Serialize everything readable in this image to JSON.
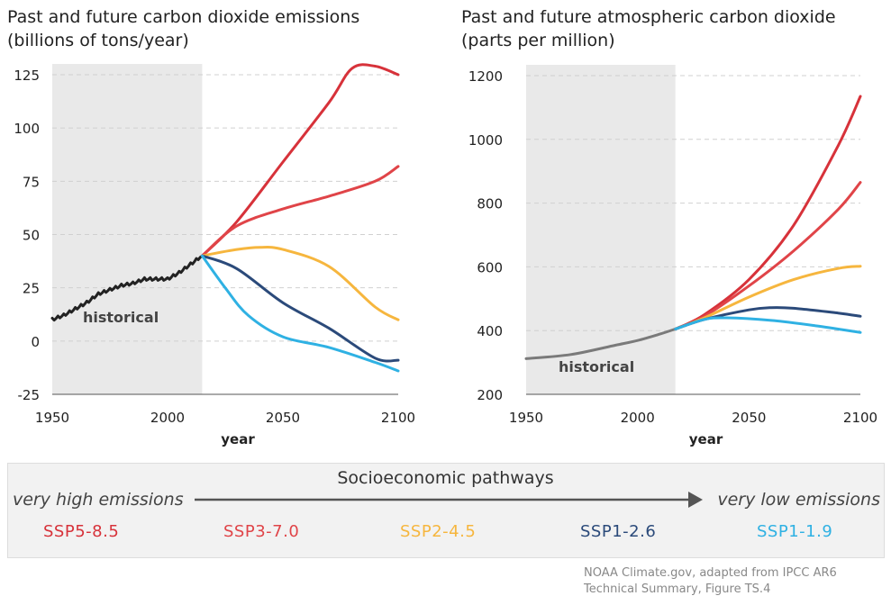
{
  "left_title_line1": "Past and future carbon dioxide emissions",
  "left_title_line2": "(billions of tons/year)",
  "right_title_line1": "Past and future atmospheric carbon dioxide",
  "right_title_line2": "(parts per million)",
  "legend": {
    "title": "Socioeconomic pathways",
    "left_label": "very high emissions",
    "right_label": "very low emissions",
    "scenarios": [
      {
        "label": "SSP5-8.5",
        "color": "#d7323a"
      },
      {
        "label": "SSP3-7.0",
        "color": "#e04448"
      },
      {
        "label": "SSP2-4.5",
        "color": "#f6b63e"
      },
      {
        "label": "SSP1-2.6",
        "color": "#2b4a7a"
      },
      {
        "label": "SSP1-1.9",
        "color": "#2fb1e3"
      }
    ]
  },
  "source_line1": "NOAA Climate.gov, adapted from IPCC AR6",
  "source_line2": "Technical Summary, Figure TS.4",
  "colors": {
    "historical_emissions": "#222222",
    "historical_co2": "#7a7a7a",
    "shade": "#e9e9e9",
    "grid": "#d0d0d0"
  },
  "chart_data": [
    {
      "type": "line",
      "xlabel": "year",
      "ylabel": "",
      "xlim": [
        1950,
        2100
      ],
      "ylim": [
        -25,
        125
      ],
      "xticks": [
        1950,
        2000,
        2050,
        2100
      ],
      "yticks": [
        -25,
        0,
        25,
        50,
        75,
        100,
        125
      ],
      "shaded_region": {
        "label": "historical",
        "x": [
          1950,
          2015
        ]
      },
      "series": [
        {
          "name": "historical",
          "x": [
            1950,
            1955,
            1960,
            1965,
            1970,
            1975,
            1980,
            1985,
            1990,
            1995,
            2000,
            2005,
            2010,
            2015
          ],
          "y": [
            10,
            12,
            15,
            18,
            22,
            24,
            26,
            27,
            29,
            29,
            29,
            32,
            36,
            40
          ]
        },
        {
          "name": "SSP5-8.5",
          "x": [
            2015,
            2030,
            2050,
            2070,
            2080,
            2090,
            2100
          ],
          "y": [
            40,
            56,
            84,
            112,
            128,
            129,
            125
          ]
        },
        {
          "name": "SSP3-7.0",
          "x": [
            2015,
            2030,
            2050,
            2070,
            2090,
            2100
          ],
          "y": [
            40,
            54,
            62,
            68,
            75,
            82
          ]
        },
        {
          "name": "SSP2-4.5",
          "x": [
            2015,
            2030,
            2040,
            2050,
            2070,
            2090,
            2100
          ],
          "y": [
            40,
            43,
            44,
            43,
            35,
            16,
            10
          ]
        },
        {
          "name": "SSP1-2.6",
          "x": [
            2015,
            2030,
            2050,
            2070,
            2090,
            2100
          ],
          "y": [
            40,
            34,
            18,
            6,
            -8,
            -9
          ]
        },
        {
          "name": "SSP1-1.9",
          "x": [
            2015,
            2025,
            2035,
            2050,
            2070,
            2090,
            2100
          ],
          "y": [
            40,
            25,
            12,
            2,
            -3,
            -10,
            -14
          ]
        }
      ]
    },
    {
      "type": "line",
      "xlabel": "year",
      "ylabel": "",
      "xlim": [
        1950,
        2100
      ],
      "ylim": [
        200,
        1200
      ],
      "xticks": [
        1950,
        2000,
        2050,
        2100
      ],
      "yticks": [
        200,
        400,
        600,
        800,
        1000,
        1200
      ],
      "shaded_region": {
        "label": "historical",
        "x": [
          1950,
          2017
        ]
      },
      "series": [
        {
          "name": "historical",
          "x": [
            1950,
            1970,
            1990,
            2000,
            2010,
            2017
          ],
          "y": [
            312,
            325,
            354,
            369,
            389,
            405
          ]
        },
        {
          "name": "SSP5-8.5",
          "x": [
            2017,
            2030,
            2050,
            2070,
            2090,
            2100
          ],
          "y": [
            405,
            450,
            560,
            730,
            980,
            1135
          ]
        },
        {
          "name": "SSP3-7.0",
          "x": [
            2017,
            2030,
            2050,
            2070,
            2090,
            2100
          ],
          "y": [
            405,
            445,
            540,
            650,
            780,
            865
          ]
        },
        {
          "name": "SSP2-4.5",
          "x": [
            2017,
            2030,
            2050,
            2070,
            2090,
            2100
          ],
          "y": [
            405,
            440,
            505,
            560,
            595,
            602
          ]
        },
        {
          "name": "SSP1-2.6",
          "x": [
            2017,
            2030,
            2050,
            2060,
            2070,
            2090,
            2100
          ],
          "y": [
            405,
            435,
            465,
            472,
            470,
            455,
            445
          ]
        },
        {
          "name": "SSP1-1.9",
          "x": [
            2017,
            2030,
            2040,
            2060,
            2080,
            2100
          ],
          "y": [
            405,
            435,
            440,
            432,
            415,
            394
          ]
        }
      ]
    }
  ]
}
